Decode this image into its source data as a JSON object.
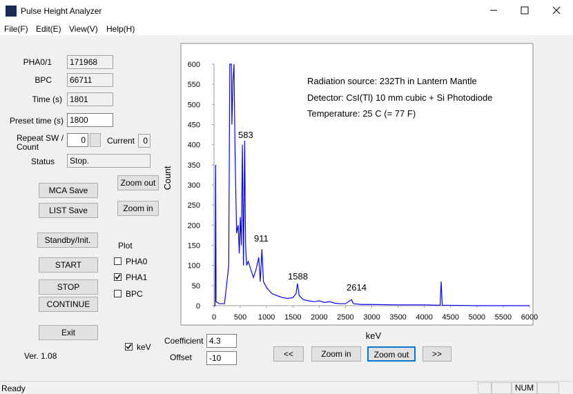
{
  "window": {
    "title": "Pulse Height Analyzer"
  },
  "menu": [
    "File(F)",
    "Edit(E)",
    "View(V)",
    "Help(H)"
  ],
  "fields": {
    "pha": {
      "label": "PHA0/1",
      "value": "171968"
    },
    "bpc": {
      "label": "BPC",
      "value": "66711"
    },
    "time": {
      "label": "Time (s)",
      "value": "1801"
    },
    "preset": {
      "label": "Preset time (s)",
      "value": "1800"
    },
    "repeat": {
      "label_line1": "Repeat SW /",
      "label_line2": "Count",
      "value": "0"
    },
    "current": {
      "label": "Current",
      "value": "0"
    },
    "status": {
      "label": "Status",
      "value": "Stop."
    },
    "coefficient": {
      "label": "Coefficient",
      "value": "4.3"
    },
    "offset": {
      "label": "Offset",
      "value": "-10"
    }
  },
  "buttons": {
    "mca_save": "MCA Save",
    "list_save": "LIST Save",
    "zoom_out_side": "Zoom out",
    "zoom_in_side": "Zoom in",
    "standby": "Standby/Init.",
    "start": "START",
    "stop": "STOP",
    "continue": "CONTINUE",
    "exit": "Exit",
    "prev": "<<",
    "zoom_in": "Zoom in",
    "zoom_out": "Zoom out",
    "next": ">>"
  },
  "plot": {
    "label": "Plot",
    "checkboxes": [
      {
        "label": "PHA0",
        "checked": false
      },
      {
        "label": "PHA1",
        "checked": true
      },
      {
        "label": "BPC",
        "checked": false
      }
    ]
  },
  "kev_checkbox": {
    "label": "keV",
    "checked": true
  },
  "version": "Ver. 1.08",
  "status_bar": {
    "message": "Ready",
    "indicator": "NUM"
  },
  "chart_data": {
    "type": "line",
    "x_label": "keV",
    "y_label": "Count",
    "info_lines": [
      "Radiation source: 232Th in Lantern Mantle",
      "Detector: CsI(Tl) 10 mm cubic + Si Photodiode",
      "Temperature: 25 C (= 77 F)"
    ],
    "peak_labels": [
      "583",
      "911",
      "1588",
      "2614"
    ],
    "xlim": [
      0,
      6000
    ],
    "xticks": [
      0,
      500,
      1000,
      1500,
      2000,
      2500,
      3000,
      3500,
      4000,
      4500,
      5000,
      5500,
      6000
    ],
    "ylim": [
      0,
      600
    ],
    "yticks": [
      0,
      50,
      100,
      150,
      200,
      250,
      300,
      350,
      400,
      450,
      500,
      550,
      600
    ],
    "series": [
      {
        "color": "#0000ff",
        "x": [
          0,
          20,
          30,
          40,
          100,
          200,
          280,
          300,
          320,
          330,
          340,
          360,
          380,
          400,
          430,
          460,
          480,
          500,
          520,
          540,
          560,
          583,
          600,
          620,
          650,
          700,
          750,
          800,
          850,
          880,
          911,
          940,
          1000,
          1100,
          1200,
          1300,
          1400,
          1500,
          1560,
          1588,
          1620,
          1700,
          1800,
          1900,
          2000,
          2100,
          2200,
          2300,
          2400,
          2500,
          2614,
          2650,
          2800,
          3000,
          3500,
          4000,
          4300,
          4320,
          4340,
          4500,
          5000,
          5500,
          6000
        ],
        "values": [
          0,
          0,
          350,
          10,
          5,
          5,
          100,
          600,
          600,
          600,
          450,
          560,
          600,
          380,
          180,
          200,
          130,
          220,
          150,
          400,
          100,
          410,
          150,
          100,
          110,
          90,
          70,
          90,
          120,
          60,
          140,
          60,
          45,
          30,
          25,
          20,
          18,
          20,
          30,
          55,
          25,
          15,
          12,
          10,
          12,
          8,
          10,
          6,
          5,
          5,
          15,
          5,
          3,
          3,
          2,
          2,
          1,
          60,
          1,
          1,
          0,
          0,
          0
        ]
      }
    ]
  }
}
